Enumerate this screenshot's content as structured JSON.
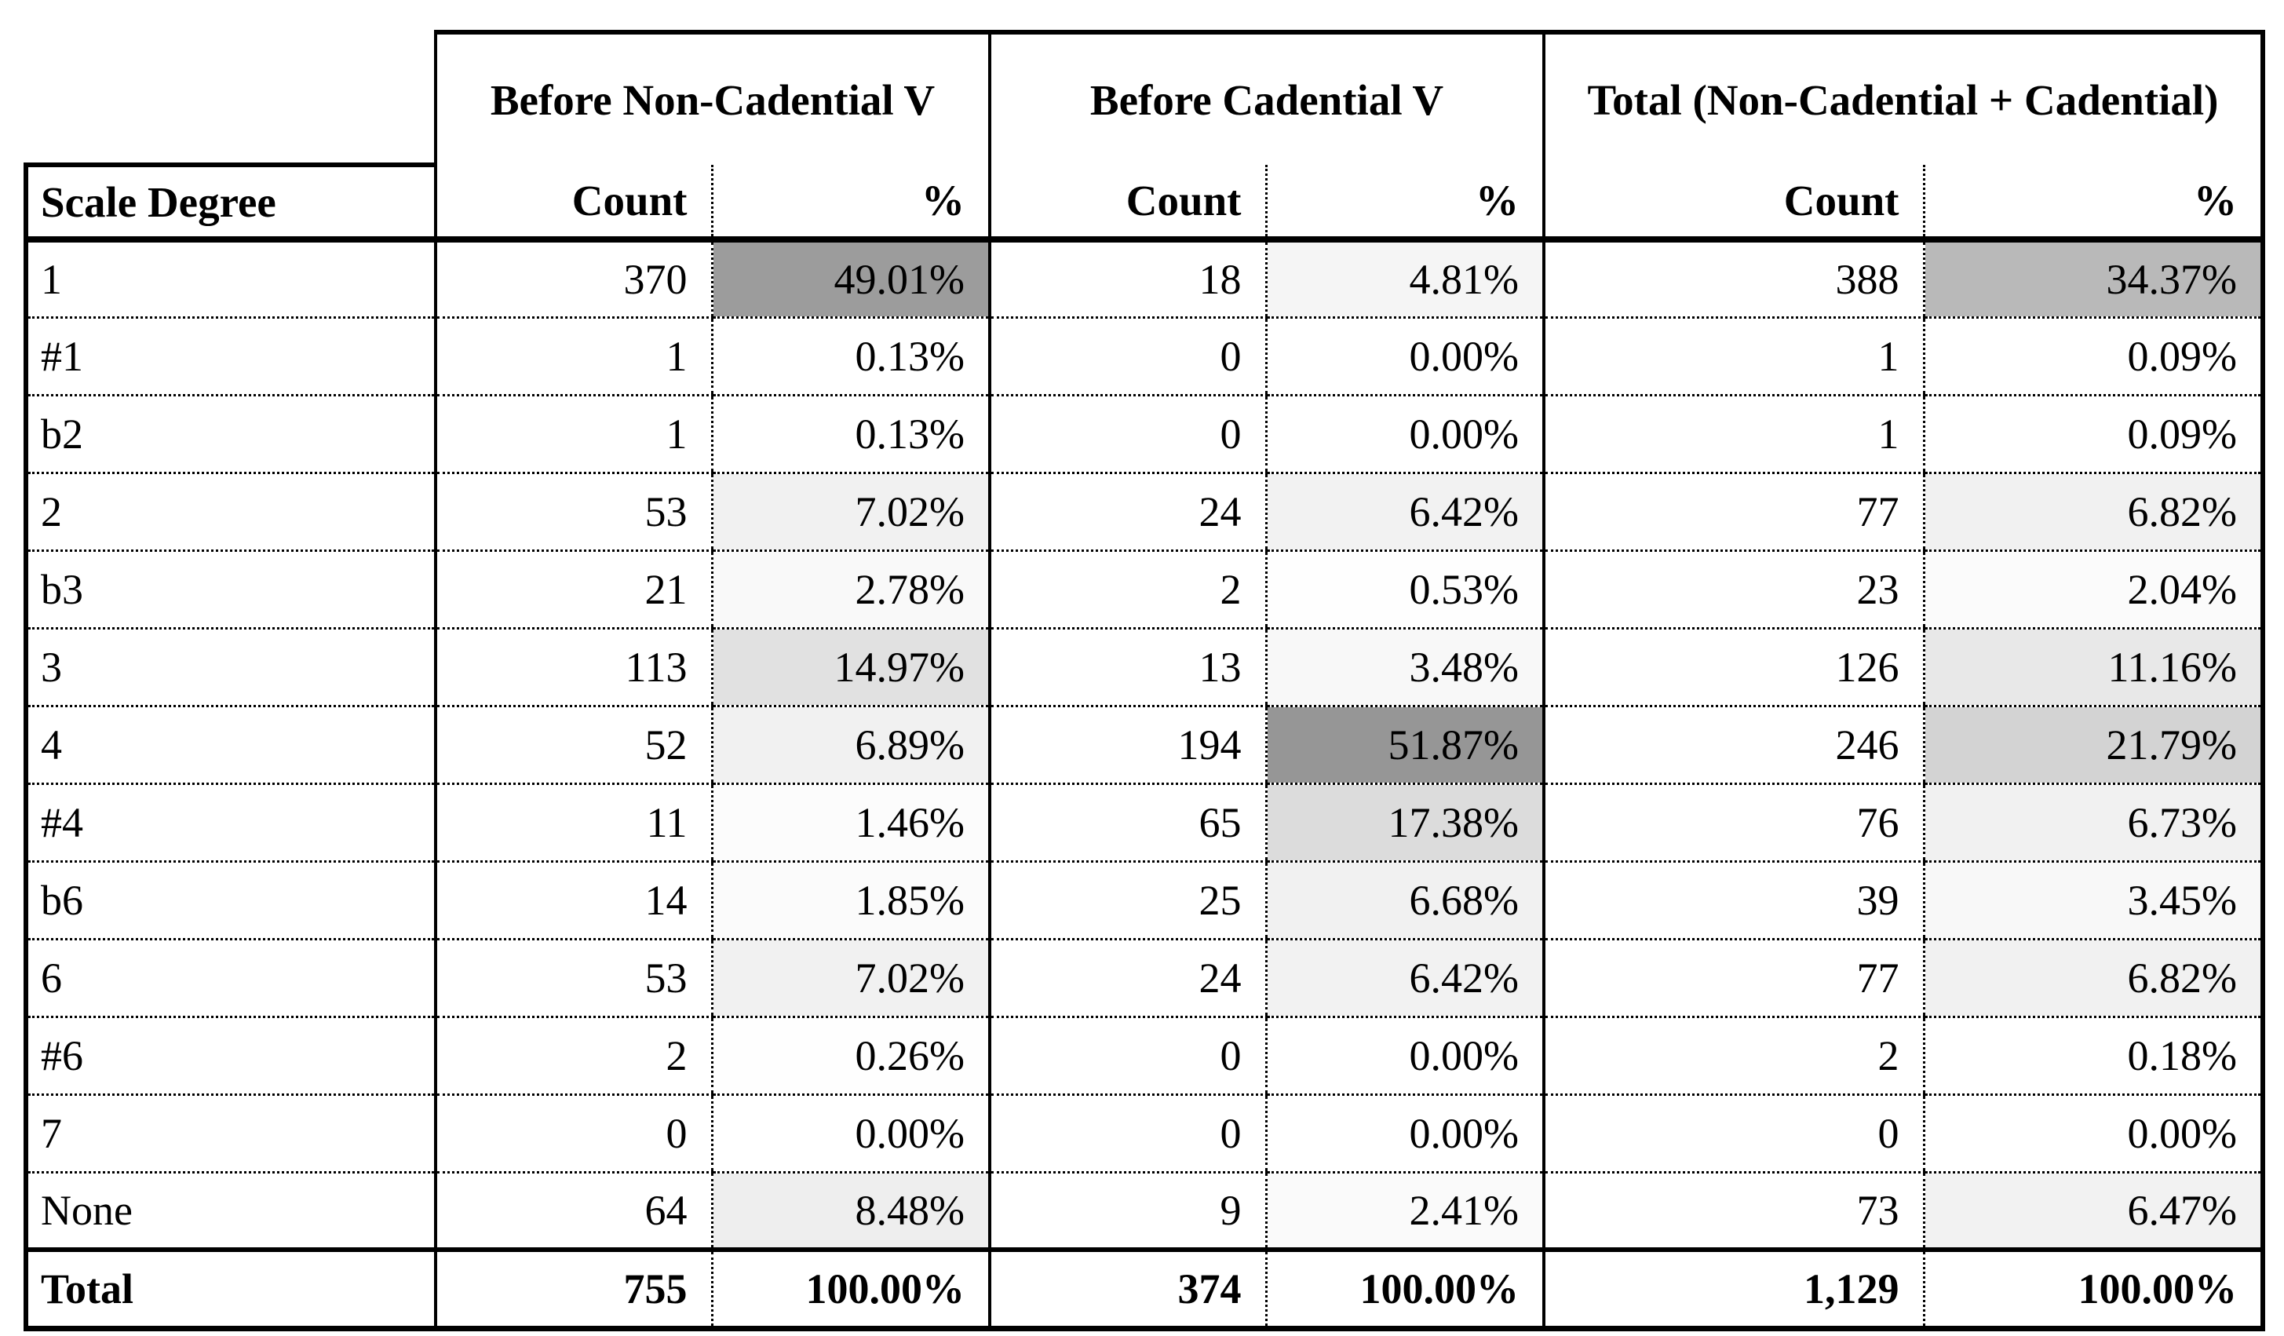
{
  "table": {
    "row_header_label": "Scale Degree",
    "groups": [
      {
        "label": "Before Non-Cadential V"
      },
      {
        "label": "Before Cadential V"
      },
      {
        "label": "Total (Non-Cadential + Cadential)"
      }
    ],
    "col_labels": {
      "count": "Count",
      "pct": "%"
    },
    "shading": {
      "darkest_hex": "#969696",
      "darkest_channel": 150,
      "lightest_hex": "#ffffff",
      "max_pct": 51.87
    },
    "rows": [
      {
        "degree": "1",
        "values": [
          "370",
          "49.01%",
          "18",
          "4.81%",
          "388",
          "34.37%"
        ],
        "pcts": [
          49.01,
          4.81,
          34.37
        ]
      },
      {
        "degree": "#1",
        "values": [
          "1",
          "0.13%",
          "0",
          "0.00%",
          "1",
          "0.09%"
        ],
        "pcts": [
          0.13,
          0.0,
          0.09
        ]
      },
      {
        "degree": "b2",
        "values": [
          "1",
          "0.13%",
          "0",
          "0.00%",
          "1",
          "0.09%"
        ],
        "pcts": [
          0.13,
          0.0,
          0.09
        ]
      },
      {
        "degree": "2",
        "values": [
          "53",
          "7.02%",
          "24",
          "6.42%",
          "77",
          "6.82%"
        ],
        "pcts": [
          7.02,
          6.42,
          6.82
        ]
      },
      {
        "degree": "b3",
        "values": [
          "21",
          "2.78%",
          "2",
          "0.53%",
          "23",
          "2.04%"
        ],
        "pcts": [
          2.78,
          0.53,
          2.04
        ]
      },
      {
        "degree": "3",
        "values": [
          "113",
          "14.97%",
          "13",
          "3.48%",
          "126",
          "11.16%"
        ],
        "pcts": [
          14.97,
          3.48,
          11.16
        ]
      },
      {
        "degree": "4",
        "values": [
          "52",
          "6.89%",
          "194",
          "51.87%",
          "246",
          "21.79%"
        ],
        "pcts": [
          6.89,
          51.87,
          21.79
        ]
      },
      {
        "degree": "#4",
        "values": [
          "11",
          "1.46%",
          "65",
          "17.38%",
          "76",
          "6.73%"
        ],
        "pcts": [
          1.46,
          17.38,
          6.73
        ]
      },
      {
        "degree": "b6",
        "values": [
          "14",
          "1.85%",
          "25",
          "6.68%",
          "39",
          "3.45%"
        ],
        "pcts": [
          1.85,
          6.68,
          3.45
        ]
      },
      {
        "degree": "6",
        "values": [
          "53",
          "7.02%",
          "24",
          "6.42%",
          "77",
          "6.82%"
        ],
        "pcts": [
          7.02,
          6.42,
          6.82
        ]
      },
      {
        "degree": "#6",
        "values": [
          "2",
          "0.26%",
          "0",
          "0.00%",
          "2",
          "0.18%"
        ],
        "pcts": [
          0.26,
          0.0,
          0.18
        ]
      },
      {
        "degree": "7",
        "values": [
          "0",
          "0.00%",
          "0",
          "0.00%",
          "0",
          "0.00%"
        ],
        "pcts": [
          0.0,
          0.0,
          0.0
        ]
      },
      {
        "degree": "None",
        "values": [
          "64",
          "8.48%",
          "9",
          "2.41%",
          "73",
          "6.47%"
        ],
        "pcts": [
          8.48,
          2.41,
          6.47
        ]
      }
    ],
    "total_row": {
      "degree": "Total",
      "values": [
        "755",
        "100.00%",
        "374",
        "100.00%",
        "1,129",
        "100.00%"
      ]
    }
  }
}
